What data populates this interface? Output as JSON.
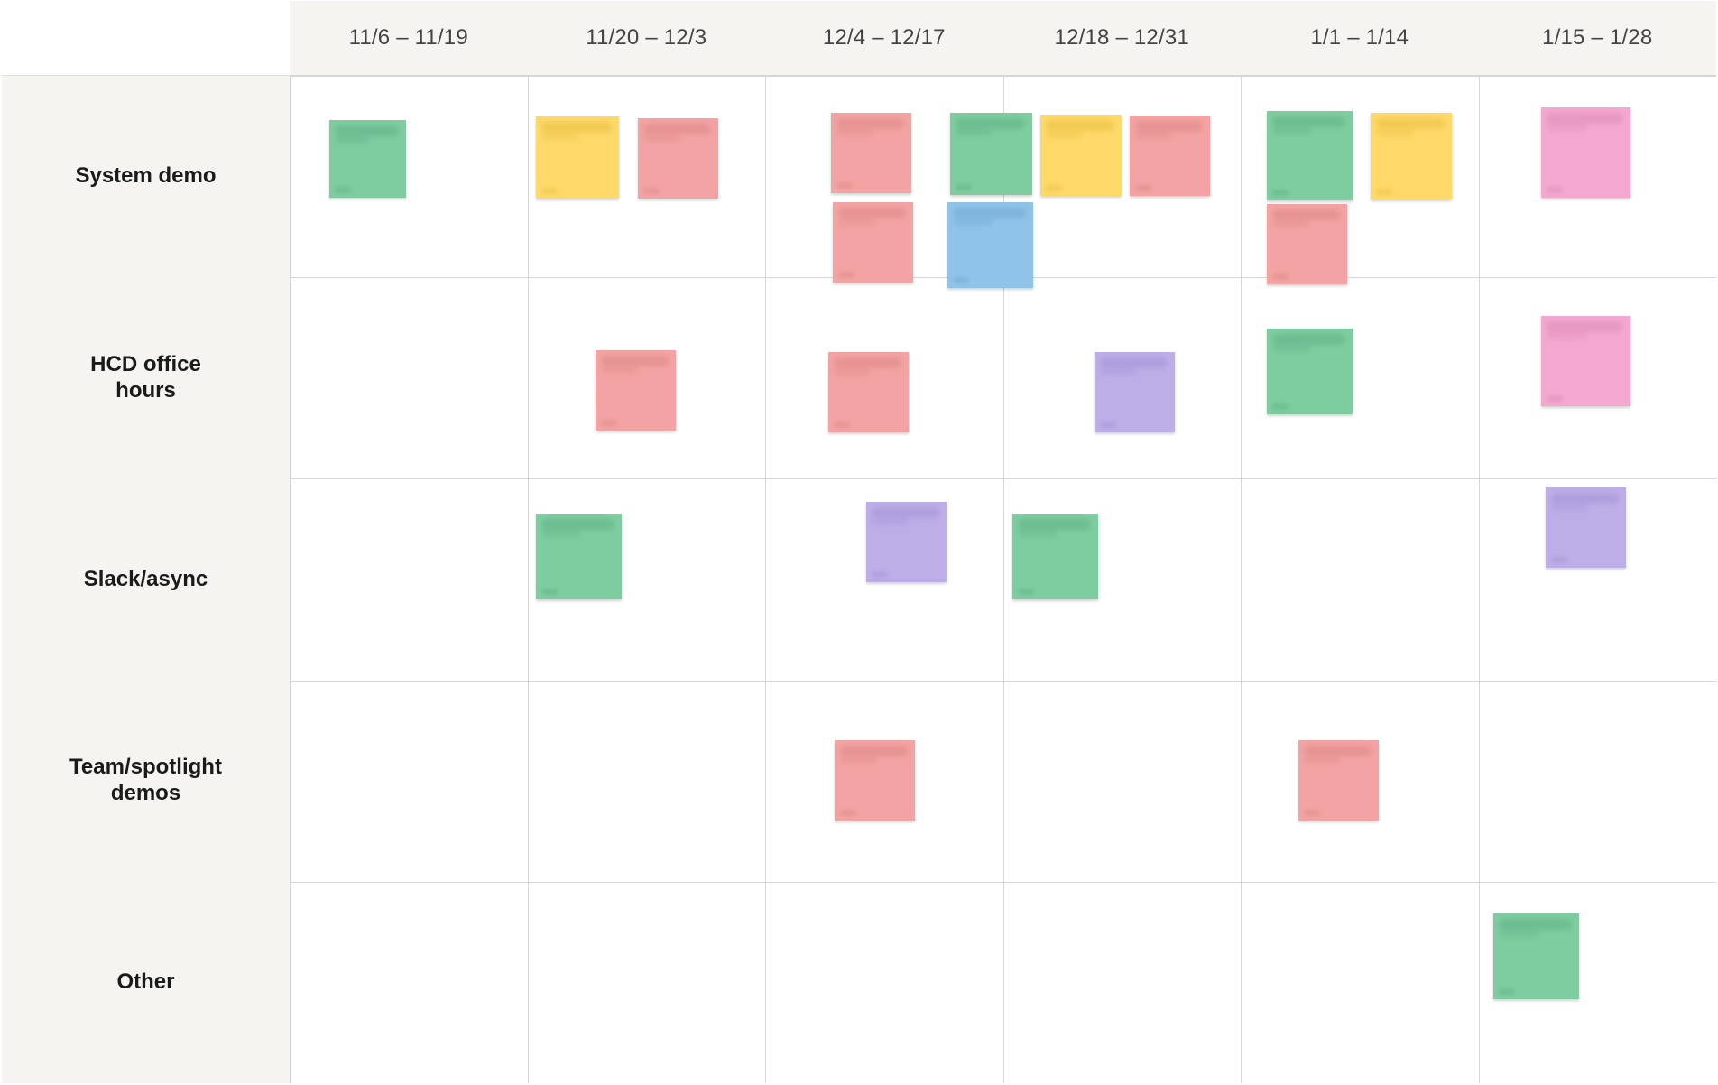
{
  "columns": [
    {
      "label": "11/6 – 11/19"
    },
    {
      "label": "11/20 – 12/3"
    },
    {
      "label": "12/4 – 12/17"
    },
    {
      "label": "12/18 – 12/31"
    },
    {
      "label": "1/1 – 1/14"
    },
    {
      "label": "1/15 – 1/28"
    }
  ],
  "rows": [
    {
      "label": "System demo"
    },
    {
      "label": "HCD office hours"
    },
    {
      "label": "Slack/async"
    },
    {
      "label": "Team/spotlight demos"
    },
    {
      "label": "Other"
    }
  ],
  "colors": {
    "green": "#7ecda0",
    "yellow": "#fed96a",
    "red": "#f3a3a3",
    "blue": "#90c3e8",
    "purple": "#bdaee8",
    "pink": "#f4a8d0"
  },
  "stickies": [
    {
      "row": 0,
      "col": 0,
      "color": "green"
    },
    {
      "row": 0,
      "col": 1,
      "color": "yellow"
    },
    {
      "row": 0,
      "col": 1,
      "color": "red"
    },
    {
      "row": 0,
      "col": 2,
      "color": "red"
    },
    {
      "row": 0,
      "col": 2,
      "color": "red"
    },
    {
      "row": 0,
      "col": 2,
      "color": "green"
    },
    {
      "row": 0,
      "col": 2,
      "color": "blue"
    },
    {
      "row": 0,
      "col": 3,
      "color": "yellow"
    },
    {
      "row": 0,
      "col": 3,
      "color": "red"
    },
    {
      "row": 0,
      "col": 4,
      "color": "green"
    },
    {
      "row": 0,
      "col": 4,
      "color": "yellow"
    },
    {
      "row": 0,
      "col": 4,
      "color": "red"
    },
    {
      "row": 0,
      "col": 5,
      "color": "pink"
    },
    {
      "row": 1,
      "col": 1,
      "color": "red"
    },
    {
      "row": 1,
      "col": 2,
      "color": "red"
    },
    {
      "row": 1,
      "col": 3,
      "color": "purple"
    },
    {
      "row": 1,
      "col": 4,
      "color": "green"
    },
    {
      "row": 1,
      "col": 5,
      "color": "pink"
    },
    {
      "row": 2,
      "col": 1,
      "color": "green"
    },
    {
      "row": 2,
      "col": 2,
      "color": "purple"
    },
    {
      "row": 2,
      "col": 3,
      "color": "green"
    },
    {
      "row": 2,
      "col": 5,
      "color": "purple"
    },
    {
      "row": 3,
      "col": 2,
      "color": "red"
    },
    {
      "row": 3,
      "col": 4,
      "color": "red"
    },
    {
      "row": 4,
      "col": 5,
      "color": "green"
    }
  ]
}
